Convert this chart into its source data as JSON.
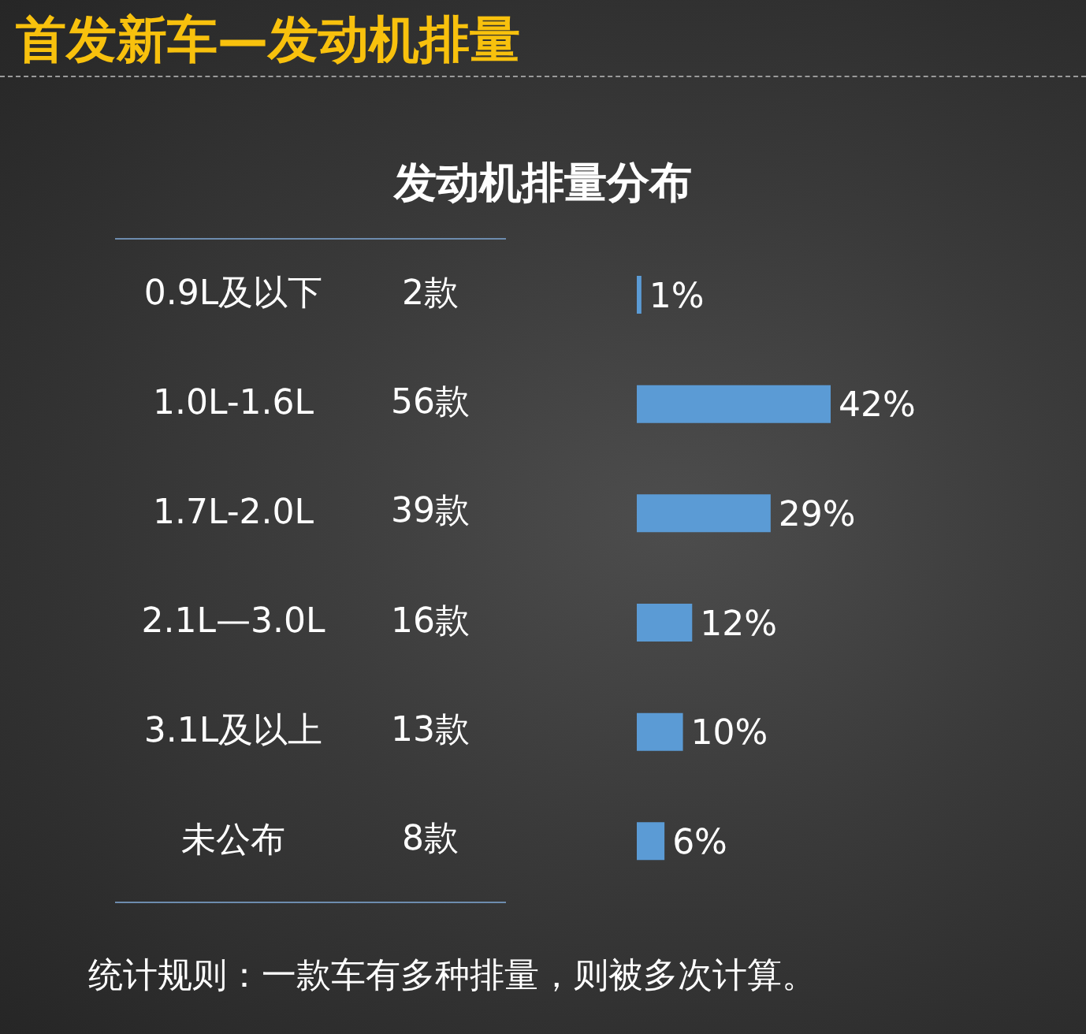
{
  "chart_data": {
    "type": "bar",
    "orientation": "horizontal",
    "title": "首发新车—发动机排量",
    "subtitle": "发动机排量分布",
    "categories": [
      "0.9L及以下",
      "1.0L-1.6L",
      "1.7L-2.0L",
      "2.1L—3.0L",
      "3.1L及以上",
      "未公布"
    ],
    "values": [
      1,
      42,
      29,
      12,
      10,
      6
    ],
    "value_labels": [
      "1%",
      "42%",
      "29%",
      "12%",
      "10%",
      "6%"
    ],
    "color": "#5b9bd5",
    "tick_labels": "y",
    "annotations": [
      "2款",
      "56款",
      "39款",
      "16款",
      "13款",
      "8款",
      "统计规则：一款车有多种排量，则被多次计算。"
    ]
  }
}
